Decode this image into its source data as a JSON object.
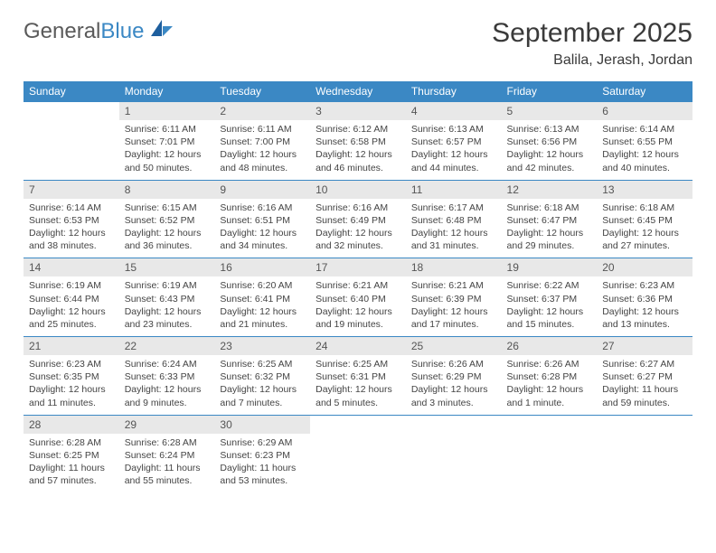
{
  "logo": {
    "text1": "General",
    "text2": "Blue"
  },
  "title": "September 2025",
  "location": "Balila, Jerash, Jordan",
  "colors": {
    "header_bg": "#3b88c4",
    "header_text": "#ffffff",
    "daynum_bg": "#e8e8e8",
    "row_divider": "#3b88c4",
    "body_text": "#444444"
  },
  "dayHeaders": [
    "Sunday",
    "Monday",
    "Tuesday",
    "Wednesday",
    "Thursday",
    "Friday",
    "Saturday"
  ],
  "weeks": [
    {
      "nums": [
        "",
        "1",
        "2",
        "3",
        "4",
        "5",
        "6"
      ],
      "cells": [
        null,
        {
          "sr": "Sunrise: 6:11 AM",
          "ss": "Sunset: 7:01 PM",
          "dl": "Daylight: 12 hours and 50 minutes."
        },
        {
          "sr": "Sunrise: 6:11 AM",
          "ss": "Sunset: 7:00 PM",
          "dl": "Daylight: 12 hours and 48 minutes."
        },
        {
          "sr": "Sunrise: 6:12 AM",
          "ss": "Sunset: 6:58 PM",
          "dl": "Daylight: 12 hours and 46 minutes."
        },
        {
          "sr": "Sunrise: 6:13 AM",
          "ss": "Sunset: 6:57 PM",
          "dl": "Daylight: 12 hours and 44 minutes."
        },
        {
          "sr": "Sunrise: 6:13 AM",
          "ss": "Sunset: 6:56 PM",
          "dl": "Daylight: 12 hours and 42 minutes."
        },
        {
          "sr": "Sunrise: 6:14 AM",
          "ss": "Sunset: 6:55 PM",
          "dl": "Daylight: 12 hours and 40 minutes."
        }
      ]
    },
    {
      "nums": [
        "7",
        "8",
        "9",
        "10",
        "11",
        "12",
        "13"
      ],
      "cells": [
        {
          "sr": "Sunrise: 6:14 AM",
          "ss": "Sunset: 6:53 PM",
          "dl": "Daylight: 12 hours and 38 minutes."
        },
        {
          "sr": "Sunrise: 6:15 AM",
          "ss": "Sunset: 6:52 PM",
          "dl": "Daylight: 12 hours and 36 minutes."
        },
        {
          "sr": "Sunrise: 6:16 AM",
          "ss": "Sunset: 6:51 PM",
          "dl": "Daylight: 12 hours and 34 minutes."
        },
        {
          "sr": "Sunrise: 6:16 AM",
          "ss": "Sunset: 6:49 PM",
          "dl": "Daylight: 12 hours and 32 minutes."
        },
        {
          "sr": "Sunrise: 6:17 AM",
          "ss": "Sunset: 6:48 PM",
          "dl": "Daylight: 12 hours and 31 minutes."
        },
        {
          "sr": "Sunrise: 6:18 AM",
          "ss": "Sunset: 6:47 PM",
          "dl": "Daylight: 12 hours and 29 minutes."
        },
        {
          "sr": "Sunrise: 6:18 AM",
          "ss": "Sunset: 6:45 PM",
          "dl": "Daylight: 12 hours and 27 minutes."
        }
      ]
    },
    {
      "nums": [
        "14",
        "15",
        "16",
        "17",
        "18",
        "19",
        "20"
      ],
      "cells": [
        {
          "sr": "Sunrise: 6:19 AM",
          "ss": "Sunset: 6:44 PM",
          "dl": "Daylight: 12 hours and 25 minutes."
        },
        {
          "sr": "Sunrise: 6:19 AM",
          "ss": "Sunset: 6:43 PM",
          "dl": "Daylight: 12 hours and 23 minutes."
        },
        {
          "sr": "Sunrise: 6:20 AM",
          "ss": "Sunset: 6:41 PM",
          "dl": "Daylight: 12 hours and 21 minutes."
        },
        {
          "sr": "Sunrise: 6:21 AM",
          "ss": "Sunset: 6:40 PM",
          "dl": "Daylight: 12 hours and 19 minutes."
        },
        {
          "sr": "Sunrise: 6:21 AM",
          "ss": "Sunset: 6:39 PM",
          "dl": "Daylight: 12 hours and 17 minutes."
        },
        {
          "sr": "Sunrise: 6:22 AM",
          "ss": "Sunset: 6:37 PM",
          "dl": "Daylight: 12 hours and 15 minutes."
        },
        {
          "sr": "Sunrise: 6:23 AM",
          "ss": "Sunset: 6:36 PM",
          "dl": "Daylight: 12 hours and 13 minutes."
        }
      ]
    },
    {
      "nums": [
        "21",
        "22",
        "23",
        "24",
        "25",
        "26",
        "27"
      ],
      "cells": [
        {
          "sr": "Sunrise: 6:23 AM",
          "ss": "Sunset: 6:35 PM",
          "dl": "Daylight: 12 hours and 11 minutes."
        },
        {
          "sr": "Sunrise: 6:24 AM",
          "ss": "Sunset: 6:33 PM",
          "dl": "Daylight: 12 hours and 9 minutes."
        },
        {
          "sr": "Sunrise: 6:25 AM",
          "ss": "Sunset: 6:32 PM",
          "dl": "Daylight: 12 hours and 7 minutes."
        },
        {
          "sr": "Sunrise: 6:25 AM",
          "ss": "Sunset: 6:31 PM",
          "dl": "Daylight: 12 hours and 5 minutes."
        },
        {
          "sr": "Sunrise: 6:26 AM",
          "ss": "Sunset: 6:29 PM",
          "dl": "Daylight: 12 hours and 3 minutes."
        },
        {
          "sr": "Sunrise: 6:26 AM",
          "ss": "Sunset: 6:28 PM",
          "dl": "Daylight: 12 hours and 1 minute."
        },
        {
          "sr": "Sunrise: 6:27 AM",
          "ss": "Sunset: 6:27 PM",
          "dl": "Daylight: 11 hours and 59 minutes."
        }
      ]
    },
    {
      "nums": [
        "28",
        "29",
        "30",
        "",
        "",
        "",
        ""
      ],
      "cells": [
        {
          "sr": "Sunrise: 6:28 AM",
          "ss": "Sunset: 6:25 PM",
          "dl": "Daylight: 11 hours and 57 minutes."
        },
        {
          "sr": "Sunrise: 6:28 AM",
          "ss": "Sunset: 6:24 PM",
          "dl": "Daylight: 11 hours and 55 minutes."
        },
        {
          "sr": "Sunrise: 6:29 AM",
          "ss": "Sunset: 6:23 PM",
          "dl": "Daylight: 11 hours and 53 minutes."
        },
        null,
        null,
        null,
        null
      ]
    }
  ]
}
